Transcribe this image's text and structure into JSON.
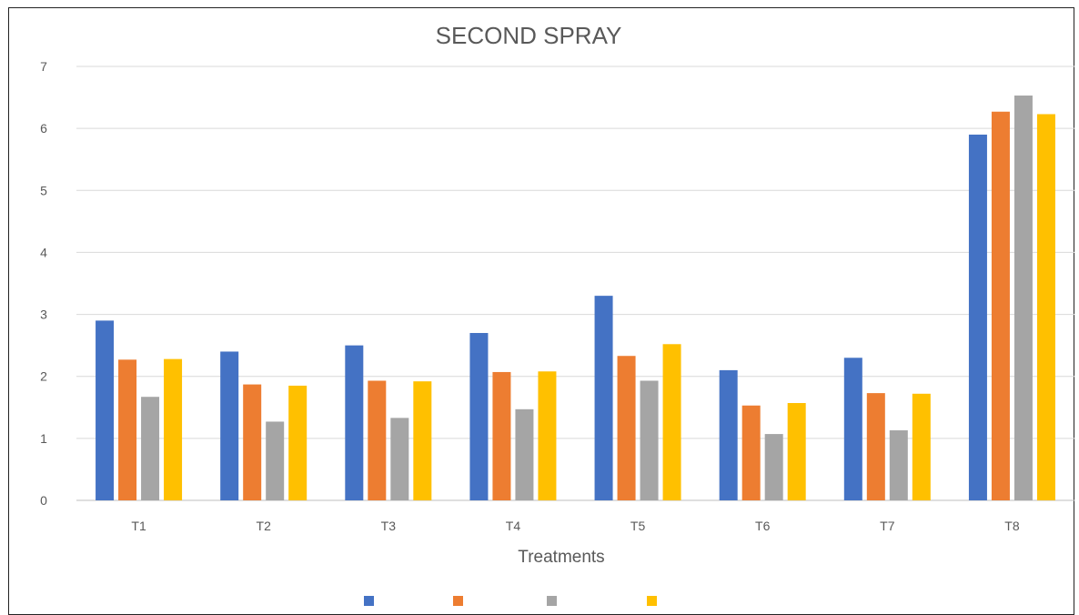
{
  "chart_data": {
    "type": "bar",
    "title": "SECOND SPRAY",
    "xlabel": "Treatments",
    "ylabel": "",
    "categories": [
      "T1",
      "T2",
      "T3",
      "T4",
      "T5",
      "T6",
      "T7",
      "T8"
    ],
    "ylim": [
      0,
      7
    ],
    "yticks": [
      0,
      1,
      2,
      3,
      4,
      5,
      6,
      7
    ],
    "grid": true,
    "legend_position": "bottom",
    "series": [
      {
        "color": "#4472C4",
        "values": [
          2.9,
          2.4,
          2.5,
          2.7,
          3.3,
          2.1,
          2.3,
          5.9
        ]
      },
      {
        "color": "#ED7D31",
        "values": [
          2.27,
          1.87,
          1.93,
          2.07,
          2.33,
          1.53,
          1.73,
          6.27
        ]
      },
      {
        "color": "#A5A5A5",
        "values": [
          1.67,
          1.27,
          1.33,
          1.47,
          1.93,
          1.07,
          1.13,
          6.53
        ]
      },
      {
        "color": "#FFC000",
        "values": [
          2.28,
          1.85,
          1.92,
          2.08,
          2.52,
          1.57,
          1.72,
          6.23
        ]
      }
    ]
  }
}
